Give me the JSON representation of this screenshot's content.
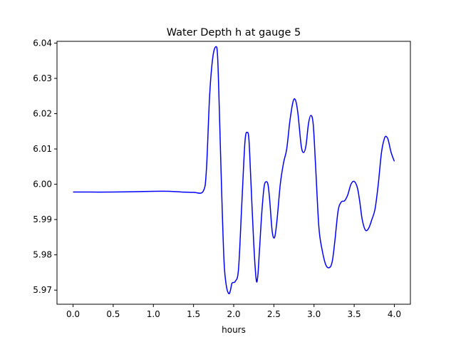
{
  "chart_data": {
    "type": "line",
    "title": "Water Depth h at gauge 5",
    "xlabel": "hours",
    "ylabel": "",
    "xlim": [
      -0.2,
      4.2
    ],
    "ylim": [
      5.966,
      6.0405
    ],
    "xticks": [
      0.0,
      0.5,
      1.0,
      1.5,
      2.0,
      2.5,
      3.0,
      3.5,
      4.0
    ],
    "xtick_labels": [
      "0.0",
      "0.5",
      "1.0",
      "1.5",
      "2.0",
      "2.5",
      "3.0",
      "3.5",
      "4.0"
    ],
    "yticks": [
      5.97,
      5.98,
      5.99,
      6.0,
      6.01,
      6.02,
      6.03,
      6.04
    ],
    "ytick_labels": [
      "5.97",
      "5.98",
      "5.99",
      "6.00",
      "6.01",
      "6.02",
      "6.03",
      "6.04"
    ],
    "grid": false,
    "series": [
      {
        "color": "#0000ff",
        "x": [
          0.0,
          0.5,
          1.0,
          1.2,
          1.35,
          1.5,
          1.62,
          1.66,
          1.7,
          1.74,
          1.78,
          1.8,
          1.82,
          1.85,
          1.88,
          1.91,
          1.94,
          1.96,
          1.98,
          2.02,
          2.06,
          2.1,
          2.14,
          2.17,
          2.19,
          2.21,
          2.25,
          2.28,
          2.3,
          2.32,
          2.35,
          2.38,
          2.41,
          2.43,
          2.45,
          2.48,
          2.51,
          2.54,
          2.58,
          2.62,
          2.66,
          2.7,
          2.74,
          2.77,
          2.8,
          2.84,
          2.87,
          2.9,
          2.93,
          2.96,
          2.99,
          3.02,
          3.06,
          3.1,
          3.15,
          3.2,
          3.23,
          3.26,
          3.3,
          3.34,
          3.38,
          3.42,
          3.46,
          3.5,
          3.54,
          3.57,
          3.6,
          3.64,
          3.68,
          3.72,
          3.76,
          3.8,
          3.84,
          3.88,
          3.91,
          3.93,
          3.96,
          4.0
        ],
        "y": [
          5.9978,
          5.9978,
          5.998,
          5.998,
          5.9978,
          5.9977,
          5.998,
          6.004,
          6.025,
          6.036,
          6.039,
          6.036,
          6.022,
          5.998,
          5.978,
          5.971,
          5.969,
          5.97,
          5.972,
          5.9725,
          5.976,
          5.994,
          6.012,
          6.0147,
          6.0125,
          6.003,
          5.983,
          5.973,
          5.974,
          5.981,
          5.992,
          5.9995,
          6.0007,
          5.9995,
          5.995,
          5.9865,
          5.985,
          5.99,
          6.0,
          6.006,
          6.01,
          6.018,
          6.0235,
          6.0238,
          6.02,
          6.011,
          6.009,
          6.011,
          6.017,
          6.0195,
          6.017,
          6.005,
          5.988,
          5.9815,
          5.977,
          5.9765,
          5.9785,
          5.984,
          5.9925,
          5.995,
          5.9953,
          5.997,
          6.0,
          6.0008,
          5.999,
          5.995,
          5.99,
          5.987,
          5.9875,
          5.99,
          5.993,
          6.0,
          6.009,
          6.0132,
          6.0133,
          6.012,
          6.009,
          6.0065
        ]
      }
    ]
  }
}
